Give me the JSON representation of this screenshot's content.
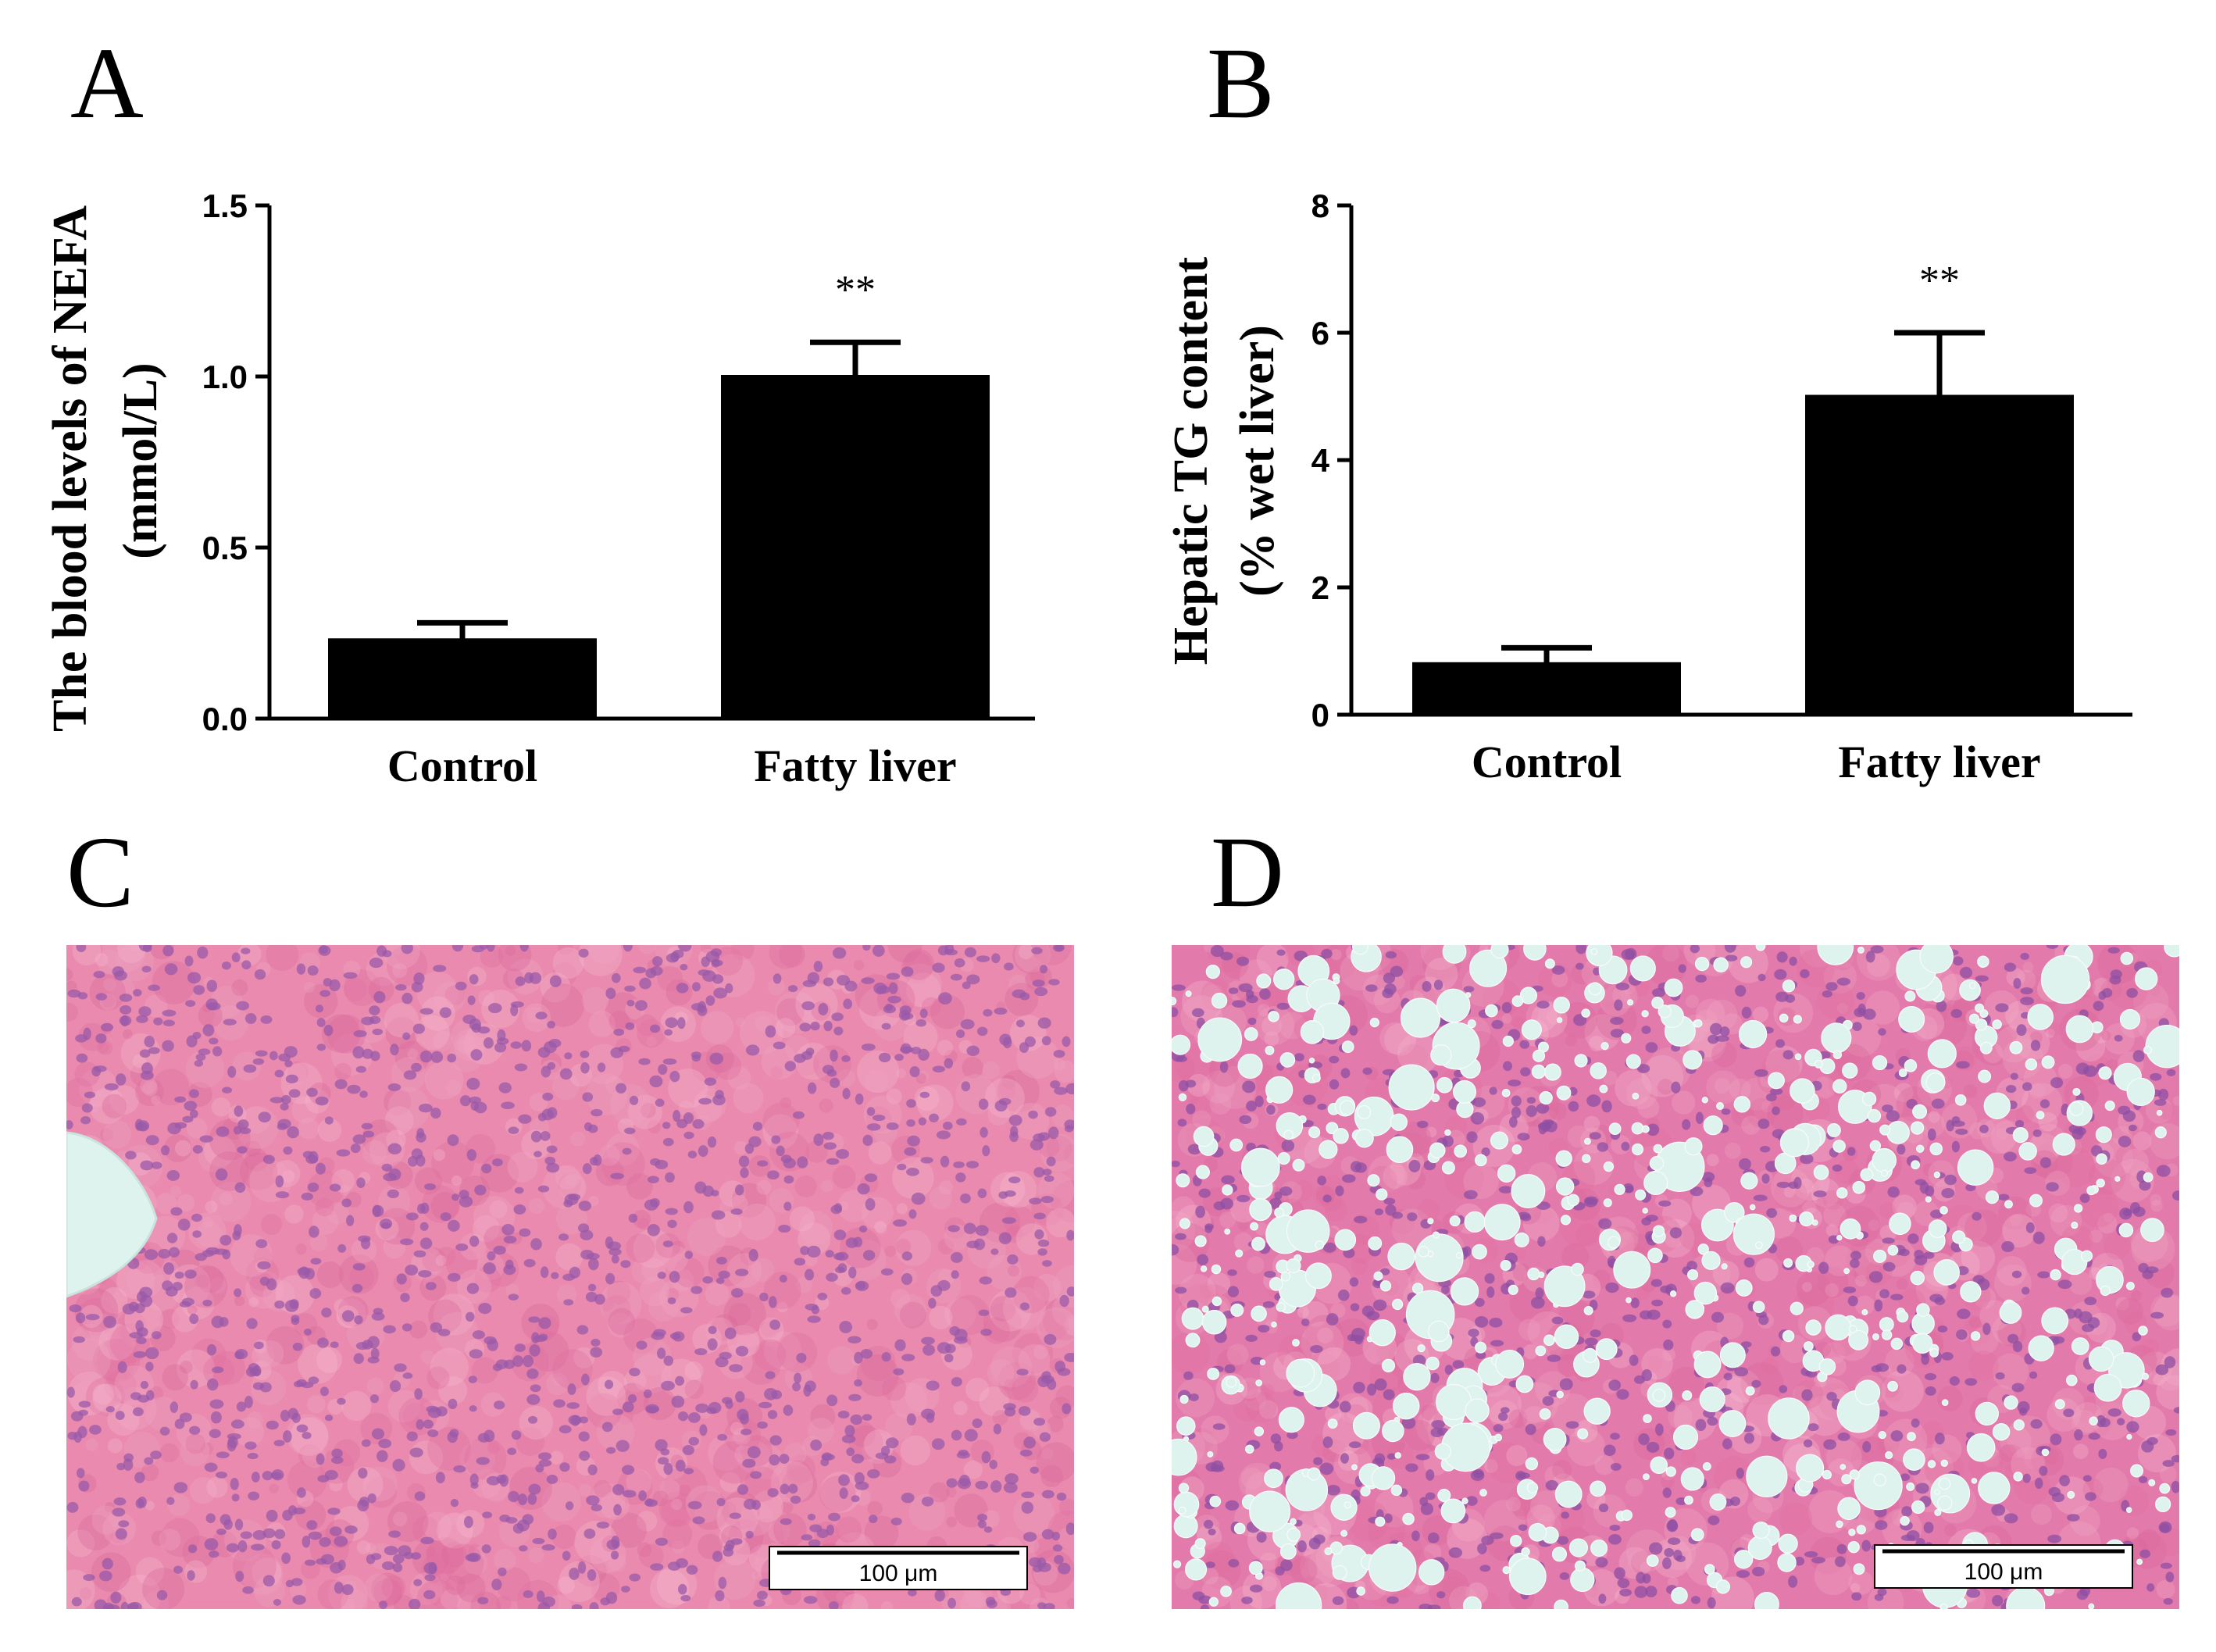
{
  "panels": {
    "a": "A",
    "b": "B",
    "c": "C",
    "d": "D"
  },
  "chart_data": [
    {
      "type": "bar",
      "categories": [
        "Control",
        "Fatty liver"
      ],
      "values": [
        0.23,
        1.0
      ],
      "errors": [
        0.05,
        0.1
      ],
      "significance": [
        "",
        "**"
      ],
      "ylabel_line1": "The blood levels of NEFA",
      "ylabel_line2": "(mmol/L)",
      "ylim": [
        0,
        1.5
      ],
      "yticks": [
        0.0,
        0.5,
        1.0,
        1.5
      ],
      "ytick_labels": [
        "0.0",
        "0.5",
        "1.0",
        "1.5"
      ],
      "bar_color": "#000000"
    },
    {
      "type": "bar",
      "categories": [
        "Control",
        "Fatty liver"
      ],
      "values": [
        0.8,
        5.0
      ],
      "errors": [
        0.25,
        1.0
      ],
      "significance": [
        "",
        "**"
      ],
      "ylabel_line1": "Hepatic TG content",
      "ylabel_line2": "(% wet liver)",
      "ylim": [
        0,
        8
      ],
      "yticks": [
        0,
        2,
        4,
        6,
        8
      ],
      "ytick_labels": [
        "0",
        "2",
        "4",
        "6",
        "8"
      ],
      "bar_color": "#000000"
    }
  ],
  "images": [
    {
      "description_id": "control",
      "scale_bar_label": "100 μm",
      "tissue_color": "#e87aa6",
      "nuclei_color": "#9a5aa8"
    },
    {
      "description_id": "fatty",
      "scale_bar_label": "100 μm",
      "tissue_color": "#e16fa4",
      "nuclei_color": "#8d4fa3",
      "droplet_color": "#dff3ee"
    }
  ]
}
